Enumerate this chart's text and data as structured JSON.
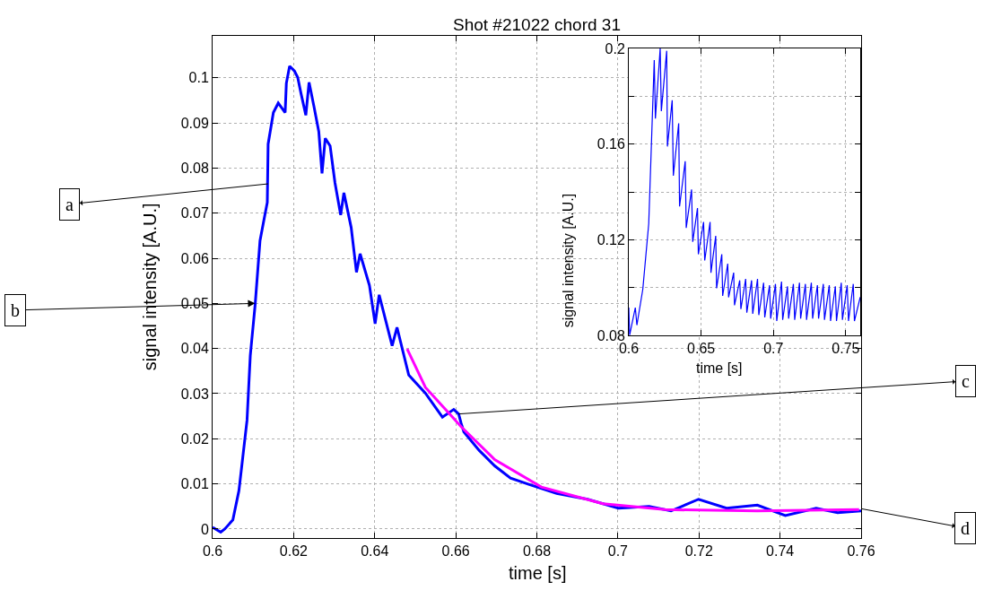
{
  "chart_data": [
    {
      "type": "line",
      "title": "Shot #21022 chord 31",
      "xlabel": "time [s]",
      "ylabel": "signal intensity [A.U.]",
      "xlim": [
        0.6,
        0.76
      ],
      "ylim": [
        -0.002,
        0.1093
      ],
      "xticks": [
        0.6,
        0.62,
        0.64,
        0.66,
        0.68,
        0.7,
        0.72,
        0.74,
        0.76
      ],
      "yticks": [
        0,
        0.01,
        0.02,
        0.03,
        0.04,
        0.05,
        0.06,
        0.07,
        0.08,
        0.09,
        0.1
      ],
      "grid": true,
      "line_style": "solid",
      "marker": "none",
      "series": [
        {
          "color": "#0000ff",
          "x": [
            0.6,
            0.602,
            0.603,
            0.605,
            0.6065,
            0.6085,
            0.6093,
            0.6105,
            0.6117,
            0.6129,
            0.6135,
            0.6137,
            0.615,
            0.6162,
            0.6179,
            0.6182,
            0.619,
            0.6202,
            0.621,
            0.6218,
            0.623,
            0.6238,
            0.625,
            0.6262,
            0.627,
            0.6278,
            0.629,
            0.6302,
            0.6316,
            0.6324,
            0.6342,
            0.6355,
            0.6364,
            0.6387,
            0.6401,
            0.6411,
            0.6443,
            0.6455,
            0.6484,
            0.6525,
            0.6567,
            0.6595,
            0.6607,
            0.6613,
            0.662,
            0.6658,
            0.6696,
            0.6735,
            0.678,
            0.6849,
            0.6925,
            0.7001,
            0.7077,
            0.7131,
            0.7199,
            0.7268,
            0.7344,
            0.7413,
            0.7489,
            0.7542,
            0.76
          ],
          "values": [
            0.0004,
            -0.0007,
            0.0,
            0.002,
            0.0085,
            0.0241,
            0.0384,
            0.0497,
            0.0639,
            0.0696,
            0.0724,
            0.0853,
            0.0923,
            0.0944,
            0.0923,
            0.0988,
            0.1026,
            0.1015,
            0.1001,
            0.0966,
            0.0917,
            0.099,
            0.0937,
            0.0881,
            0.0788,
            0.0866,
            0.0849,
            0.0767,
            0.0696,
            0.0745,
            0.0668,
            0.0569,
            0.061,
            0.054,
            0.0455,
            0.0519,
            0.0406,
            0.0447,
            0.0341,
            0.0301,
            0.0248,
            0.0265,
            0.0255,
            0.0235,
            0.0215,
            0.0174,
            0.014,
            0.0113,
            0.0099,
            0.0079,
            0.0066,
            0.0046,
            0.005,
            0.004,
            0.0066,
            0.0046,
            0.0053,
            0.003,
            0.0046,
            0.0036,
            0.004
          ]
        },
        {
          "color": "#ff00ff",
          "x": [
            0.648,
            0.6525,
            0.6613,
            0.6696,
            0.6811,
            0.6963,
            0.7116,
            0.7343,
            0.7595
          ],
          "values": [
            0.0399,
            0.0314,
            0.0227,
            0.0154,
            0.0093,
            0.0056,
            0.0043,
            0.004,
            0.0043
          ]
        }
      ],
      "annotations": [
        {
          "text": "a",
          "x": 0.6137,
          "y": 0.0765
        },
        {
          "text": "b",
          "x": 0.6105,
          "y": 0.05
        },
        {
          "text": "c",
          "x": 0.6607,
          "y": 0.0255
        },
        {
          "text": "d",
          "x": 0.76,
          "y": 0.0045
        }
      ]
    },
    {
      "type": "line",
      "xlabel": "time [s]",
      "ylabel": "signal intensity [A.U.]",
      "xlim": [
        0.6,
        0.76
      ],
      "ylim": [
        0.08,
        0.2
      ],
      "xticks": [
        0.6,
        0.65,
        0.7,
        0.75
      ],
      "yticks": [
        {
          "value": 0.08,
          "label": "0.08"
        },
        {
          "value": 0.1,
          "label": null
        },
        {
          "value": 0.12,
          "label": "0.12"
        },
        {
          "value": 0.14,
          "label": null
        },
        {
          "value": 0.16,
          "label": "0.16"
        },
        {
          "value": 0.18,
          "label": null
        },
        {
          "value": 0.2,
          "label": "0.2"
        }
      ],
      "grid": true,
      "line_style": "solid",
      "marker": "none",
      "series": [
        {
          "color": "#0000ff",
          "x": [
            0.6,
            0.6006,
            0.6045,
            0.6056,
            0.6097,
            0.6138,
            0.6176,
            0.6184,
            0.6217,
            0.6225,
            0.6262,
            0.6267,
            0.63,
            0.6308,
            0.6345,
            0.6351,
            0.639,
            0.6397,
            0.6434,
            0.6442,
            0.6475,
            0.6481,
            0.6517,
            0.6525,
            0.6562,
            0.6568,
            0.6601,
            0.6607,
            0.6643,
            0.6649,
            0.6684,
            0.669,
            0.6725,
            0.6731,
            0.6767,
            0.6775,
            0.6808,
            0.6816,
            0.6849,
            0.6857,
            0.689,
            0.6899,
            0.6932,
            0.694,
            0.6973,
            0.6981,
            0.7014,
            0.7023,
            0.7056,
            0.7064,
            0.7097,
            0.7105,
            0.7138,
            0.7147,
            0.718,
            0.7188,
            0.7221,
            0.7229,
            0.7262,
            0.7271,
            0.7304,
            0.7312,
            0.7345,
            0.7353,
            0.7386,
            0.7395,
            0.7428,
            0.7436,
            0.7469,
            0.7477,
            0.751,
            0.7519,
            0.7552,
            0.756,
            0.76
          ],
          "values": [
            0.0916,
            0.0801,
            0.0916,
            0.0843,
            0.0993,
            0.1268,
            0.1951,
            0.1707,
            0.2,
            0.1738,
            0.199,
            0.159,
            0.1783,
            0.1468,
            0.1687,
            0.1339,
            0.1528,
            0.1249,
            0.141,
            0.1191,
            0.1332,
            0.1139,
            0.1274,
            0.1113,
            0.1274,
            0.1062,
            0.1216,
            0.0997,
            0.1139,
            0.0965,
            0.11,
            0.0959,
            0.1062,
            0.0926,
            0.103,
            0.091,
            0.1036,
            0.0895,
            0.103,
            0.089,
            0.1036,
            0.0885,
            0.102,
            0.0875,
            0.101,
            0.087,
            0.1015,
            0.086,
            0.1025,
            0.0865,
            0.1005,
            0.087,
            0.1015,
            0.0865,
            0.102,
            0.087,
            0.1015,
            0.0865,
            0.102,
            0.087,
            0.101,
            0.087,
            0.1015,
            0.0865,
            0.101,
            0.086,
            0.1005,
            0.086,
            0.102,
            0.0865,
            0.101,
            0.086,
            0.1015,
            0.086,
            0.096
          ]
        }
      ]
    }
  ]
}
